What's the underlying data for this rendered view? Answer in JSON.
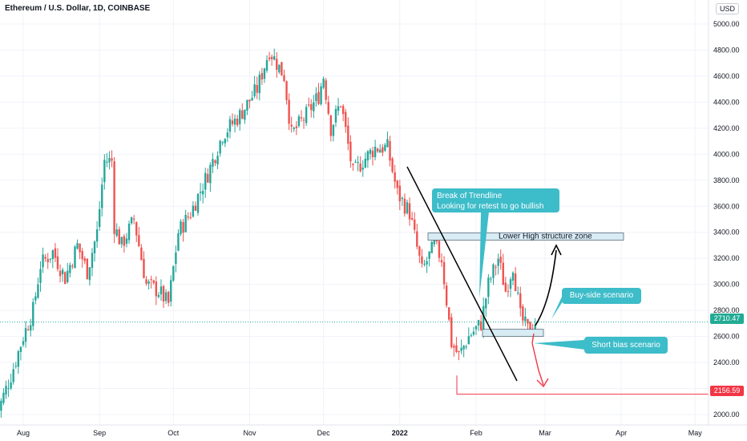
{
  "symbol_title": "Ethereum / U.S. Dollar, 1D, COINBASE",
  "currency_button": "USD",
  "colors": {
    "up": "#26a69a",
    "down": "#ef5350",
    "grid": "#f0f3fa",
    "callout": "#3dbcc9",
    "zone_fill": "#d8ecf4",
    "price_line_teal": "#22ab94",
    "price_line_red": "#f23645"
  },
  "chart_data": {
    "type": "candlestick",
    "title": "Ethereum / U.S. Dollar, 1D, COINBASE",
    "y_axis": {
      "ticks": [
        "5000.00",
        "4800.00",
        "4600.00",
        "4400.00",
        "4200.00",
        "4000.00",
        "3800.00",
        "3600.00",
        "3400.00",
        "3200.00",
        "3000.00",
        "2800.00",
        "2600.00",
        "2400.00",
        "2200.00",
        "2000.00"
      ],
      "range": [
        1900,
        5100
      ]
    },
    "x_axis": {
      "ticks": [
        "Aug",
        "Sep",
        "Oct",
        "Nov",
        "Dec",
        "2022",
        "Feb",
        "Mar",
        "Apr",
        "May"
      ],
      "range": [
        "2021-07-21",
        "2022-05-01"
      ]
    },
    "price_path": [
      [
        "2021-07-21",
        1990
      ],
      [
        "2021-07-27",
        2300
      ],
      [
        "2021-08-01",
        2600
      ],
      [
        "2021-08-05",
        2800
      ],
      [
        "2021-08-08",
        3150
      ],
      [
        "2021-08-13",
        3250
      ],
      [
        "2021-08-18",
        3050
      ],
      [
        "2021-08-23",
        3300
      ],
      [
        "2021-08-27",
        3100
      ],
      [
        "2021-08-31",
        3400
      ],
      [
        "2021-09-03",
        3950
      ],
      [
        "2021-09-06",
        3950
      ],
      [
        "2021-09-07",
        3450
      ],
      [
        "2021-09-10",
        3300
      ],
      [
        "2021-09-15",
        3500
      ],
      [
        "2021-09-20",
        3000
      ],
      [
        "2021-09-25",
        2950
      ],
      [
        "2021-09-29",
        2850
      ],
      [
        "2021-10-03",
        3400
      ],
      [
        "2021-10-08",
        3550
      ],
      [
        "2021-10-15",
        3850
      ],
      [
        "2021-10-21",
        4150
      ],
      [
        "2021-10-28",
        4300
      ],
      [
        "2021-11-04",
        4500
      ],
      [
        "2021-11-09",
        4800
      ],
      [
        "2021-11-15",
        4600
      ],
      [
        "2021-11-18",
        4150
      ],
      [
        "2021-11-24",
        4300
      ],
      [
        "2021-11-29",
        4450
      ],
      [
        "2021-12-01",
        4600
      ],
      [
        "2021-12-04",
        4200
      ],
      [
        "2021-12-08",
        4400
      ],
      [
        "2021-12-13",
        3850
      ],
      [
        "2021-12-17",
        3950
      ],
      [
        "2021-12-22",
        4050
      ],
      [
        "2021-12-27",
        4050
      ],
      [
        "2021-12-31",
        3700
      ],
      [
        "2022-01-05",
        3550
      ],
      [
        "2022-01-10",
        3100
      ],
      [
        "2022-01-15",
        3300
      ],
      [
        "2022-01-18",
        3200
      ],
      [
        "2022-01-22",
        2550
      ],
      [
        "2022-01-25",
        2450
      ],
      [
        "2022-01-29",
        2600
      ],
      [
        "2022-02-03",
        2700
      ],
      [
        "2022-02-06",
        3000
      ],
      [
        "2022-02-10",
        3200
      ],
      [
        "2022-02-13",
        2950
      ],
      [
        "2022-02-16",
        3150
      ],
      [
        "2022-02-19",
        2750
      ],
      [
        "2022-02-22",
        2650
      ],
      [
        "2022-02-25",
        2710
      ]
    ],
    "current_price": {
      "value": 2710.47,
      "label": "2710.47"
    },
    "target_price": {
      "value": 2156.59,
      "label": "2156.59"
    },
    "annotations": [
      {
        "type": "text",
        "text": "Lower High structure zone"
      },
      {
        "type": "callout",
        "text": "Break of Trendline\nLooking for retest to go bullish"
      },
      {
        "type": "callout",
        "text": "Buy-side scenario"
      },
      {
        "type": "callout",
        "text": "Short bias scenario"
      }
    ]
  }
}
